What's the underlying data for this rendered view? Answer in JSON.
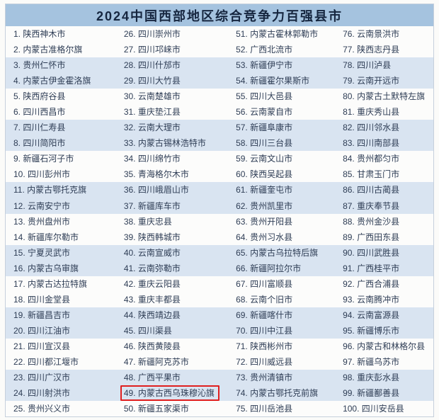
{
  "title": "2024中国西部地区综合竞争力百强县市",
  "highlighted_rank": 49,
  "colors": {
    "header_bg": "#a5c3df",
    "stripe_bg": "#d9e4f1",
    "row_bg": "#fcfcfb",
    "text": "#2e3d55",
    "title_text": "#16263f",
    "highlight_border": "#e01f1f",
    "table_border": "#c6d0dc"
  },
  "entries": [
    {
      "rank": 1,
      "name": "陕西神木市"
    },
    {
      "rank": 2,
      "name": "内蒙古准格尔旗"
    },
    {
      "rank": 3,
      "name": "贵州仁怀市"
    },
    {
      "rank": 4,
      "name": "内蒙古伊金霍洛旗"
    },
    {
      "rank": 5,
      "name": "陕西府谷县"
    },
    {
      "rank": 6,
      "name": "四川西昌市"
    },
    {
      "rank": 7,
      "name": "四川仁寿县"
    },
    {
      "rank": 8,
      "name": "四川简阳市"
    },
    {
      "rank": 9,
      "name": "新疆石河子市"
    },
    {
      "rank": 10,
      "name": "四川彭州市"
    },
    {
      "rank": 11,
      "name": "内蒙古鄂托克旗"
    },
    {
      "rank": 12,
      "name": "云南安宁市"
    },
    {
      "rank": 13,
      "name": "贵州盘州市"
    },
    {
      "rank": 14,
      "name": "新疆库尔勒市"
    },
    {
      "rank": 15,
      "name": "宁夏灵武市"
    },
    {
      "rank": 16,
      "name": "内蒙古乌审旗"
    },
    {
      "rank": 17,
      "name": "内蒙古达拉特旗"
    },
    {
      "rank": 18,
      "name": "四川金堂县"
    },
    {
      "rank": 19,
      "name": "新疆昌吉市"
    },
    {
      "rank": 20,
      "name": "四川江油市"
    },
    {
      "rank": 21,
      "name": "四川宣汉县"
    },
    {
      "rank": 22,
      "name": "四川都江堰市"
    },
    {
      "rank": 23,
      "name": "四川广汉市"
    },
    {
      "rank": 24,
      "name": "四川射洪市"
    },
    {
      "rank": 25,
      "name": "贵州兴义市"
    },
    {
      "rank": 26,
      "name": "四川崇州市"
    },
    {
      "rank": 27,
      "name": "四川邛崃市"
    },
    {
      "rank": 28,
      "name": "四川什邡市"
    },
    {
      "rank": 29,
      "name": "四川大竹县"
    },
    {
      "rank": 30,
      "name": "云南楚雄市"
    },
    {
      "rank": 31,
      "name": "重庆垫江县"
    },
    {
      "rank": 32,
      "name": "云南大理市"
    },
    {
      "rank": 33,
      "name": "内蒙古锡林浩特市"
    },
    {
      "rank": 34,
      "name": "四川绵竹市"
    },
    {
      "rank": 35,
      "name": "青海格尔木市"
    },
    {
      "rank": 36,
      "name": "四川峨眉山市"
    },
    {
      "rank": 37,
      "name": "新疆库车市"
    },
    {
      "rank": 38,
      "name": "重庆忠县"
    },
    {
      "rank": 39,
      "name": "陕西韩城市"
    },
    {
      "rank": 40,
      "name": "云南宣威市"
    },
    {
      "rank": 41,
      "name": "云南弥勒市"
    },
    {
      "rank": 42,
      "name": "重庆云阳县"
    },
    {
      "rank": 43,
      "name": "重庆丰都县"
    },
    {
      "rank": 44,
      "name": "陕西靖边县"
    },
    {
      "rank": 45,
      "name": "四川渠县"
    },
    {
      "rank": 46,
      "name": "陕西黄陵县"
    },
    {
      "rank": 47,
      "name": "新疆阿克苏市"
    },
    {
      "rank": 48,
      "name": "广西平果市"
    },
    {
      "rank": 49,
      "name": "内蒙古西乌珠穆沁旗"
    },
    {
      "rank": 50,
      "name": "新疆五家渠市"
    },
    {
      "rank": 51,
      "name": "内蒙古霍林郭勒市"
    },
    {
      "rank": 52,
      "name": "广西北流市"
    },
    {
      "rank": 53,
      "name": "新疆伊宁市"
    },
    {
      "rank": 54,
      "name": "新疆霍尔果斯市"
    },
    {
      "rank": 55,
      "name": "四川大邑县"
    },
    {
      "rank": 56,
      "name": "云南蒙自市"
    },
    {
      "rank": 57,
      "name": "新疆阜康市"
    },
    {
      "rank": 58,
      "name": "四川三台县"
    },
    {
      "rank": 59,
      "name": "云南文山市"
    },
    {
      "rank": 60,
      "name": "陕西吴起县"
    },
    {
      "rank": 61,
      "name": "新疆奎屯市"
    },
    {
      "rank": 62,
      "name": "贵州凯里市"
    },
    {
      "rank": 63,
      "name": "贵州开阳县"
    },
    {
      "rank": 64,
      "name": "贵州习水县"
    },
    {
      "rank": 65,
      "name": "内蒙古乌拉特后旗"
    },
    {
      "rank": 66,
      "name": "新疆阿拉尔市"
    },
    {
      "rank": 67,
      "name": "四川富顺县"
    },
    {
      "rank": 68,
      "name": "云南个旧市"
    },
    {
      "rank": 69,
      "name": "新疆喀什市"
    },
    {
      "rank": 70,
      "name": "四川中江县"
    },
    {
      "rank": 71,
      "name": "陕西彬州市"
    },
    {
      "rank": 72,
      "name": "四川威远县"
    },
    {
      "rank": 73,
      "name": "贵州清镇市"
    },
    {
      "rank": 74,
      "name": "内蒙古鄂托克前旗"
    },
    {
      "rank": 75,
      "name": "四川岳池县"
    },
    {
      "rank": 76,
      "name": "云南景洪市"
    },
    {
      "rank": 77,
      "name": "陕西志丹县"
    },
    {
      "rank": 78,
      "name": "四川泸县"
    },
    {
      "rank": 79,
      "name": "云南开远市"
    },
    {
      "rank": 80,
      "name": "内蒙古土默特左旗"
    },
    {
      "rank": 81,
      "name": "重庆秀山县"
    },
    {
      "rank": 82,
      "name": "四川邻水县"
    },
    {
      "rank": 83,
      "name": "四川南部县"
    },
    {
      "rank": 84,
      "name": "贵州都匀市"
    },
    {
      "rank": 85,
      "name": "甘肃玉门市"
    },
    {
      "rank": 86,
      "name": "四川古蔺县"
    },
    {
      "rank": 87,
      "name": "重庆奉节县"
    },
    {
      "rank": 88,
      "name": "贵州金沙县"
    },
    {
      "rank": 89,
      "name": "广西田东县"
    },
    {
      "rank": 90,
      "name": "四川武胜县"
    },
    {
      "rank": 91,
      "name": "广西桂平市"
    },
    {
      "rank": 92,
      "name": "广西合浦县"
    },
    {
      "rank": 93,
      "name": "云南腾冲市"
    },
    {
      "rank": 94,
      "name": "云南富源县"
    },
    {
      "rank": 95,
      "name": "新疆博乐市"
    },
    {
      "rank": 96,
      "name": "内蒙古和林格尔县"
    },
    {
      "rank": 97,
      "name": "新疆乌苏市"
    },
    {
      "rank": 98,
      "name": "重庆彭水县"
    },
    {
      "rank": 99,
      "name": "新疆鄯善县"
    },
    {
      "rank": 100,
      "name": "四川安岳县"
    }
  ]
}
